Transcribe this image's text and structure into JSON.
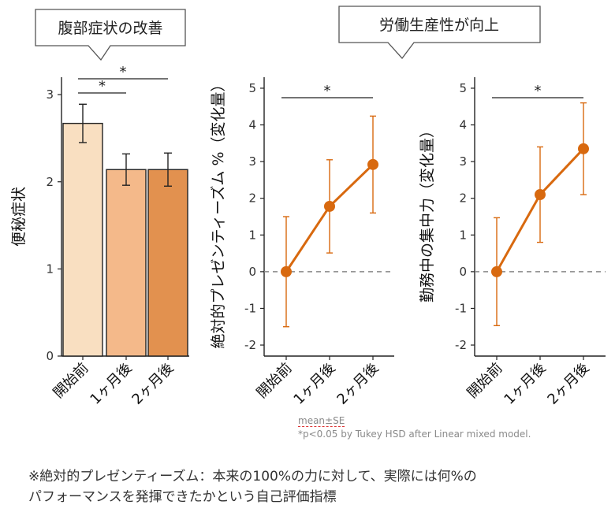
{
  "callouts": {
    "left": "腹部症状の改善",
    "right": "労働生産性が向上"
  },
  "chart_data": [
    {
      "type": "bar",
      "ylabel": "便秘症状",
      "categories": [
        "開始前",
        "1ヶ月後",
        "2ヶ月後"
      ],
      "values": [
        2.67,
        2.14,
        2.14
      ],
      "errors": [
        0.22,
        0.18,
        0.19
      ],
      "ylim": [
        0,
        3.2
      ],
      "yticks": [
        0,
        1,
        2,
        3
      ],
      "colors": [
        "#f9dfc1",
        "#f4b98a",
        "#e2914f"
      ],
      "significance": [
        {
          "from": 0,
          "to": 1,
          "label": "*"
        },
        {
          "from": 0,
          "to": 2,
          "label": "*"
        }
      ]
    },
    {
      "type": "line",
      "ylabel": "絶対的プレゼンティーズム %（変化量）",
      "categories": [
        "開始前",
        "1ヶ月後",
        "2ヶ月後"
      ],
      "values": [
        0,
        1.78,
        2.92
      ],
      "errors": [
        1.5,
        1.27,
        1.32
      ],
      "ylim": [
        -2.3,
        5.3
      ],
      "yticks": [
        -2,
        -1,
        0,
        1,
        2,
        3,
        4,
        5
      ],
      "color": "#d8690f",
      "zero_line": true,
      "significance": [
        {
          "from": 0,
          "to": 2,
          "label": "*"
        }
      ]
    },
    {
      "type": "line",
      "ylabel": "勤務中の集中力（変化量）",
      "categories": [
        "開始前",
        "1ヶ月後",
        "2ヶ月後"
      ],
      "values": [
        0,
        2.1,
        3.35
      ],
      "errors": [
        1.47,
        1.3,
        1.25
      ],
      "ylim": [
        -2.3,
        5.3
      ],
      "yticks": [
        -2,
        -1,
        0,
        1,
        2,
        3,
        4,
        5
      ],
      "color": "#d8690f",
      "zero_line": true,
      "significance": [
        {
          "from": 0,
          "to": 2,
          "label": "*"
        }
      ]
    }
  ],
  "footnotes": {
    "mean": "mean±SE",
    "stat": "*p<0.05 by  Tukey HSD after Linear mixed model."
  },
  "definition": {
    "line1": "※絶対的プレゼンティーズム：本来の100%の力に対して、実際には何%の",
    "line2": "パフォーマンスを発揮できたかという自己評価指標"
  }
}
